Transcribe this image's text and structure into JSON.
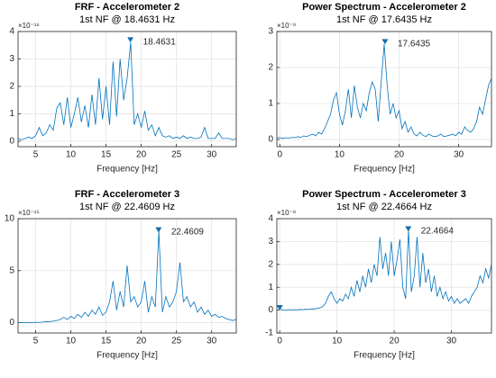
{
  "chart_data": [
    {
      "type": "line",
      "title": "FRF - Accelerometer 2",
      "subtitle": "1st NF @ 18.4631 Hz",
      "xlabel": "Frequency [Hz]",
      "y_exponent": "×10⁻¹⁶",
      "color": "#0072bd",
      "grid": true,
      "xlim": [
        2.5,
        33.5
      ],
      "xticks": [
        5,
        10,
        15,
        20,
        25,
        30
      ],
      "ylim": [
        -0.2,
        4
      ],
      "yticks": [
        0,
        1,
        2,
        3,
        4
      ],
      "peak": {
        "x": 18.4631,
        "y": 3.65
      },
      "x": [
        2.5,
        3,
        3.5,
        4,
        4.5,
        5,
        5.5,
        6,
        6.5,
        7,
        7.5,
        8,
        8.5,
        9,
        9.5,
        10,
        10.5,
        11,
        11.5,
        12,
        12.5,
        13,
        13.5,
        14,
        14.5,
        15,
        15.5,
        16,
        16.5,
        17,
        17.5,
        18,
        18.5,
        19,
        19.5,
        20,
        20.5,
        21,
        21.5,
        22,
        22.5,
        23,
        23.5,
        24,
        24.5,
        25,
        25.5,
        26,
        26.5,
        27,
        27.5,
        28,
        28.5,
        29,
        29.5,
        30,
        30.5,
        31,
        31.5,
        32,
        32.5,
        33,
        33.5
      ],
      "values": [
        0.1,
        0.05,
        0.1,
        0.15,
        0.1,
        0.2,
        0.5,
        0.2,
        0.3,
        0.6,
        0.4,
        1.2,
        1.4,
        0.6,
        1.6,
        0.5,
        1.0,
        1.6,
        0.7,
        1.3,
        0.5,
        1.7,
        0.6,
        2.3,
        0.8,
        2.0,
        0.6,
        2.9,
        0.9,
        3.0,
        1.5,
        2.3,
        3.6,
        0.6,
        1.0,
        0.5,
        1.1,
        0.4,
        0.6,
        0.2,
        0.5,
        0.2,
        0.15,
        0.2,
        0.1,
        0.15,
        0.1,
        0.2,
        0.1,
        0.15,
        0.1,
        0.1,
        0.15,
        0.5,
        0.1,
        0.1,
        0.1,
        0.3,
        0.1,
        0.1,
        0.1,
        0.05,
        0.1
      ]
    },
    {
      "type": "line",
      "title": "Power Spectrum - Accelerometer 2",
      "subtitle": "1st NF @ 17.6435 Hz",
      "xlabel": "Frequency [Hz]",
      "y_exponent": "×10⁻⁹",
      "color": "#0072bd",
      "grid": true,
      "xlim": [
        -0.5,
        35.5
      ],
      "xticks": [
        0,
        10,
        20,
        30
      ],
      "ylim": [
        -0.2,
        3
      ],
      "yticks": [
        0,
        1,
        2,
        3
      ],
      "peak": {
        "x": 17.6435,
        "y": 2.68
      },
      "x": [
        -0.5,
        0,
        0.5,
        1,
        1.5,
        2,
        2.5,
        3,
        3.5,
        4,
        4.5,
        5,
        5.5,
        6,
        6.5,
        7,
        7.5,
        8,
        8.5,
        9,
        9.5,
        10,
        10.5,
        11,
        11.5,
        12,
        12.5,
        13,
        13.5,
        14,
        14.5,
        15,
        15.5,
        16,
        16.5,
        17,
        17.5,
        18,
        18.5,
        19,
        19.5,
        20,
        20.5,
        21,
        21.5,
        22,
        22.5,
        23,
        23.5,
        24,
        24.5,
        25,
        25.5,
        26,
        26.5,
        27,
        27.5,
        28,
        28.5,
        29,
        29.5,
        30,
        30.5,
        31,
        31.5,
        32,
        32.5,
        33,
        33.5,
        34,
        34.5,
        35,
        35.5
      ],
      "values": [
        0.05,
        0.05,
        0.03,
        0.05,
        0.04,
        0.06,
        0.05,
        0.08,
        0.06,
        0.1,
        0.08,
        0.12,
        0.15,
        0.1,
        0.2,
        0.15,
        0.3,
        0.5,
        0.7,
        1.1,
        1.3,
        0.7,
        0.4,
        0.8,
        1.4,
        0.6,
        1.5,
        0.9,
        0.6,
        1.0,
        0.8,
        1.3,
        1.6,
        1.4,
        0.5,
        1.6,
        2.65,
        1.5,
        0.7,
        1.0,
        0.6,
        0.8,
        0.3,
        0.5,
        0.2,
        0.35,
        0.15,
        0.1,
        0.2,
        0.12,
        0.08,
        0.15,
        0.1,
        0.08,
        0.1,
        0.15,
        0.08,
        0.1,
        0.12,
        0.15,
        0.1,
        0.2,
        0.15,
        0.35,
        0.25,
        0.2,
        0.3,
        0.5,
        0.9,
        0.7,
        1.1,
        1.5,
        1.7
      ]
    },
    {
      "type": "line",
      "title": "FRF - Accelerometer 3",
      "subtitle": "1st NF @ 22.4609 Hz",
      "xlabel": "Frequency [Hz]",
      "y_exponent": "×10⁻¹⁵",
      "color": "#0072bd",
      "grid": true,
      "xlim": [
        2.5,
        33.5
      ],
      "xticks": [
        5,
        10,
        15,
        20,
        25,
        30
      ],
      "ylim": [
        -1,
        10
      ],
      "yticks": [
        0,
        5,
        10
      ],
      "peak": {
        "x": 22.4609,
        "y": 8.8
      },
      "x": [
        2.5,
        3,
        3.5,
        4,
        4.5,
        5,
        5.5,
        6,
        6.5,
        7,
        7.5,
        8,
        8.5,
        9,
        9.5,
        10,
        10.5,
        11,
        11.5,
        12,
        12.5,
        13,
        13.5,
        14,
        14.5,
        15,
        15.5,
        16,
        16.5,
        17,
        17.5,
        18,
        18.5,
        19,
        19.5,
        20,
        20.5,
        21,
        21.5,
        22,
        22.5,
        23,
        23.5,
        24,
        24.5,
        25,
        25.5,
        26,
        26.5,
        27,
        27.5,
        28,
        28.5,
        29,
        29.5,
        30,
        30.5,
        31,
        31.5,
        32,
        32.5,
        33,
        33.5
      ],
      "values": [
        0,
        0,
        0,
        0.02,
        0,
        0.03,
        0.02,
        0.05,
        0.1,
        0.08,
        0.15,
        0.2,
        0.3,
        0.5,
        0.3,
        0.6,
        0.4,
        0.8,
        0.5,
        1.0,
        0.6,
        1.2,
        0.8,
        1.5,
        0.7,
        1.0,
        2.0,
        4.0,
        1.2,
        3.0,
        1.5,
        5.5,
        2.0,
        2.5,
        1.5,
        2.0,
        4.0,
        1.0,
        2.5,
        1.5,
        8.8,
        1.0,
        2.5,
        1.5,
        2.0,
        3.0,
        5.8,
        2.0,
        2.5,
        1.5,
        2.0,
        1.0,
        1.5,
        0.8,
        1.2,
        0.6,
        0.8,
        0.5,
        0.6,
        0.4,
        0.3,
        0.2,
        0.3
      ]
    },
    {
      "type": "line",
      "title": "Power Spectrum - Accelerometer 3",
      "subtitle": "1st NF @ 22.4664 Hz",
      "xlabel": "Frequency [Hz]",
      "y_exponent": "×10⁻⁸",
      "color": "#0072bd",
      "grid": true,
      "xlim": [
        -0.5,
        37
      ],
      "xticks": [
        0,
        10,
        20,
        30
      ],
      "ylim": [
        -1,
        4
      ],
      "yticks": [
        -1,
        0,
        1,
        2,
        3,
        4
      ],
      "peak": {
        "x": 22.4664,
        "y": 3.5
      },
      "start_marker": {
        "x": 0,
        "y": 0.05
      },
      "x": [
        0,
        0.5,
        1,
        1.5,
        2,
        2.5,
        3,
        3.5,
        4,
        4.5,
        5,
        5.5,
        6,
        6.5,
        7,
        7.5,
        8,
        8.5,
        9,
        9.5,
        10,
        10.5,
        11,
        11.5,
        12,
        12.5,
        13,
        13.5,
        14,
        14.5,
        15,
        15.5,
        16,
        16.5,
        17,
        17.5,
        18,
        18.5,
        19,
        19.5,
        20,
        20.5,
        21,
        21.5,
        22,
        22.5,
        23,
        23.5,
        24,
        24.5,
        25,
        25.5,
        26,
        26.5,
        27,
        27.5,
        28,
        28.5,
        29,
        29.5,
        30,
        30.5,
        31,
        31.5,
        32,
        32.5,
        33,
        33.5,
        34,
        34.5,
        35,
        35.5,
        36,
        36.5,
        37
      ],
      "values": [
        0.05,
        0,
        0,
        0.02,
        0,
        0.02,
        0.01,
        0.03,
        0.02,
        0.04,
        0.03,
        0.05,
        0.05,
        0.08,
        0.1,
        0.15,
        0.3,
        0.6,
        0.8,
        0.5,
        0.3,
        0.5,
        0.4,
        0.7,
        0.5,
        1.0,
        0.6,
        1.3,
        0.8,
        1.5,
        1.0,
        1.8,
        1.2,
        2.0,
        1.5,
        3.2,
        1.8,
        2.5,
        1.5,
        3.0,
        1.5,
        2.2,
        3.1,
        1.0,
        0.5,
        3.5,
        0.8,
        1.5,
        3.2,
        1.0,
        2.5,
        1.2,
        1.8,
        0.8,
        1.5,
        0.6,
        1.0,
        0.5,
        0.8,
        0.4,
        0.6,
        0.3,
        0.5,
        0.3,
        0.4,
        0.5,
        0.3,
        0.6,
        0.8,
        1.0,
        1.5,
        1.2,
        1.8,
        1.4,
        2.0
      ]
    }
  ]
}
